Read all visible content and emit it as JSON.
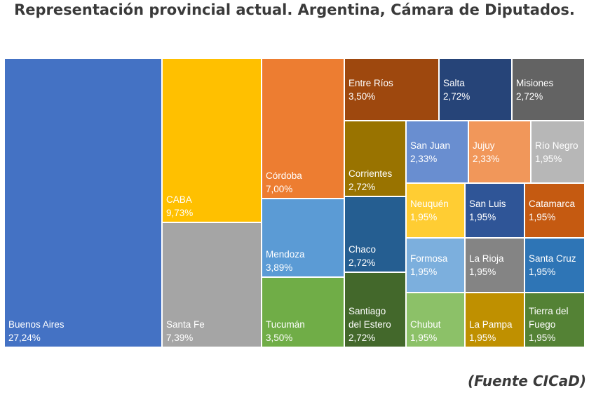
{
  "title": "Representación provincial actual. Argentina, Cámara de Diputados.",
  "source": "(Fuente CICaD)",
  "chart_data": {
    "type": "treemap",
    "title": "Representación provincial actual. Argentina, Cámara de Diputados.",
    "unit": "%",
    "items": [
      {
        "name": "Buenos Aires",
        "label": [
          "Buenos Aires"
        ],
        "value": 27.24,
        "pct": "27,24%",
        "color": "#4472c4"
      },
      {
        "name": "CABA",
        "label": [
          "CABA"
        ],
        "value": 9.73,
        "pct": "9,73%",
        "color": "#ffc000"
      },
      {
        "name": "Santa Fe",
        "label": [
          "Santa Fe"
        ],
        "value": 7.39,
        "pct": "7,39%",
        "color": "#a5a5a5"
      },
      {
        "name": "Córdoba",
        "label": [
          "Córdoba"
        ],
        "value": 7.0,
        "pct": "7,00%",
        "color": "#ed7d31"
      },
      {
        "name": "Mendoza",
        "label": [
          "Mendoza"
        ],
        "value": 3.89,
        "pct": "3,89%",
        "color": "#5b9bd5"
      },
      {
        "name": "Tucumán",
        "label": [
          "Tucumán"
        ],
        "value": 3.5,
        "pct": "3,50%",
        "color": "#70ad47"
      },
      {
        "name": "Entre Ríos",
        "label": [
          "Entre Ríos"
        ],
        "value": 3.5,
        "pct": "3,50%",
        "color": "#9e480e"
      },
      {
        "name": "Salta",
        "label": [
          "Salta"
        ],
        "value": 2.72,
        "pct": "2,72%",
        "color": "#264478"
      },
      {
        "name": "Misiones",
        "label": [
          "Misiones"
        ],
        "value": 2.72,
        "pct": "2,72%",
        "color": "#636363"
      },
      {
        "name": "Corrientes",
        "label": [
          "Corrientes"
        ],
        "value": 2.72,
        "pct": "2,72%",
        "color": "#997300"
      },
      {
        "name": "Chaco",
        "label": [
          "Chaco"
        ],
        "value": 2.72,
        "pct": "2,72%",
        "color": "#255e91"
      },
      {
        "name": "Santiago del Estero",
        "label": [
          "Santiago",
          "del Estero"
        ],
        "value": 2.72,
        "pct": "2,72%",
        "color": "#43682b"
      },
      {
        "name": "San Juan",
        "label": [
          "San Juan"
        ],
        "value": 2.33,
        "pct": "2,33%",
        "color": "#698ed0"
      },
      {
        "name": "Jujuy",
        "label": [
          "Jujuy"
        ],
        "value": 2.33,
        "pct": "2,33%",
        "color": "#f1975a"
      },
      {
        "name": "Río Negro",
        "label": [
          "Río Negro"
        ],
        "value": 1.95,
        "pct": "1,95%",
        "color": "#b7b7b7"
      },
      {
        "name": "Neuquén",
        "label": [
          "Neuquén"
        ],
        "value": 1.95,
        "pct": "1,95%",
        "color": "#ffcd33"
      },
      {
        "name": "San Luis",
        "label": [
          "San Luis"
        ],
        "value": 1.95,
        "pct": "1,95%",
        "color": "#2f5597"
      },
      {
        "name": "Catamarca",
        "label": [
          "Catamarca"
        ],
        "value": 1.95,
        "pct": "1,95%",
        "color": "#c55a11"
      },
      {
        "name": "Formosa",
        "label": [
          "Formosa"
        ],
        "value": 1.95,
        "pct": "1,95%",
        "color": "#7cafdd"
      },
      {
        "name": "La Rioja",
        "label": [
          "La Rioja"
        ],
        "value": 1.95,
        "pct": "1,95%",
        "color": "#848484"
      },
      {
        "name": "Santa Cruz",
        "label": [
          "Santa Cruz"
        ],
        "value": 1.95,
        "pct": "1,95%",
        "color": "#2e75b6"
      },
      {
        "name": "Chubut",
        "label": [
          "Chubut"
        ],
        "value": 1.95,
        "pct": "1,95%",
        "color": "#8cc168"
      },
      {
        "name": "La Pampa",
        "label": [
          "La Pampa"
        ],
        "value": 1.95,
        "pct": "1,95%",
        "color": "#bf9000"
      },
      {
        "name": "Tierra del Fuego",
        "label": [
          "Tierra del",
          "Fuego"
        ],
        "value": 1.95,
        "pct": "1,95%",
        "color": "#548235"
      }
    ]
  }
}
